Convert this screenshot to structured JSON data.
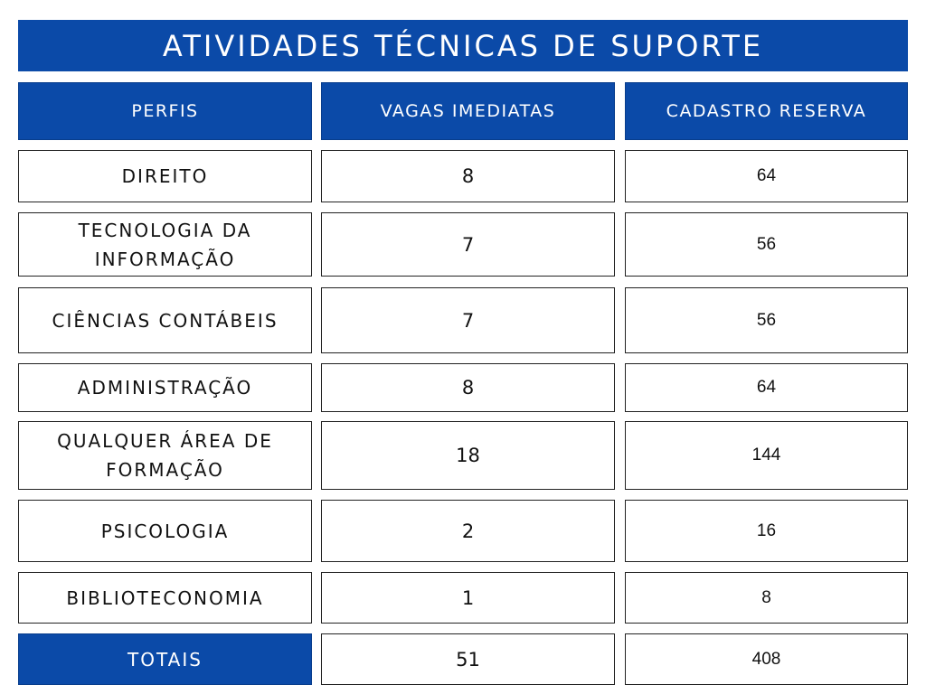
{
  "title": "ATIVIDADES TÉCNICAS DE SUPORTE",
  "table": {
    "header": [
      "PERFIS",
      "VAGAS IMEDIATAS",
      "CADASTRO RESERVA"
    ],
    "rows": [
      [
        "DIREITO",
        8,
        64
      ],
      [
        "TECNOLOGIA DA INFORMAÇÃO",
        7,
        56
      ],
      [
        "CIÊNCIAS CONTÁBEIS",
        7,
        56
      ],
      [
        "ADMINISTRAÇÃO",
        8,
        64
      ],
      [
        "QUALQUER ÁREA DE FORMAÇÃO",
        18,
        144
      ],
      [
        "PSICOLOGIA",
        2,
        16
      ],
      [
        "BIBLIOTECONOMIA",
        1,
        8
      ]
    ],
    "totals": [
      "TOTAIS",
      51,
      408
    ]
  }
}
